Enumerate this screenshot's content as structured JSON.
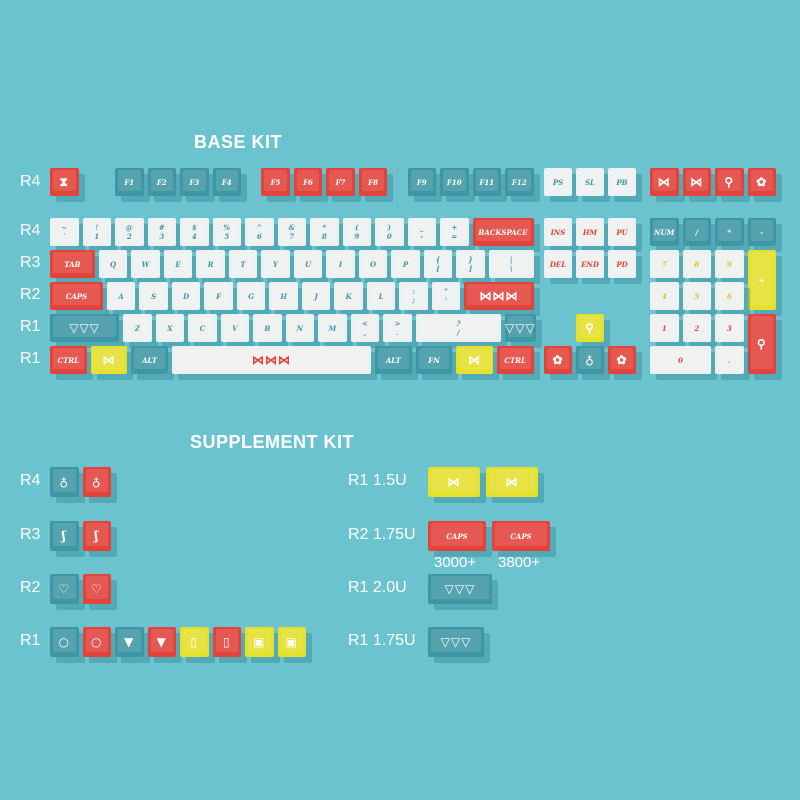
{
  "colors": {
    "background": "#6cc3d0",
    "r": "#e2433b",
    "t": "#3f97a5",
    "w": "#eef1f1",
    "y": "#e4e02c",
    "text_teal": "#3f97a5",
    "text_red": "#e2433b",
    "text_yellow": "#d9c51e",
    "text_white": "#ffffff"
  },
  "icon_glyphs": {
    "hourglass": "⧗",
    "candy": "⋈",
    "candies": "⋈⋈⋈",
    "candies-color": "⋈⋈⋈",
    "lollipop": "⚲",
    "cookie": "✿",
    "bunting": "▽▽▽",
    "donut": "◎",
    "cup": "♁",
    "heart-magnifier": "♡",
    "candy-cane": "ʃ",
    "balloon": "○",
    "ice-cream": "▼",
    "bottle": "▯",
    "gift": "▣"
  },
  "base_kit": {
    "title": "BASE KIT",
    "row_labels": [
      "R4",
      "R4",
      "R3",
      "R2",
      "R1",
      "R1"
    ],
    "fn_row": [
      {
        "icon": "hourglass",
        "c": "r"
      },
      {
        "label": "F1",
        "c": "t"
      },
      {
        "label": "F2",
        "c": "t"
      },
      {
        "label": "F3",
        "c": "t"
      },
      {
        "label": "F4",
        "c": "t"
      },
      {
        "label": "F5",
        "c": "r"
      },
      {
        "label": "F6",
        "c": "r"
      },
      {
        "label": "F7",
        "c": "r"
      },
      {
        "label": "F8",
        "c": "r"
      },
      {
        "label": "F9",
        "c": "t"
      },
      {
        "label": "F10",
        "c": "t"
      },
      {
        "label": "F11",
        "c": "t"
      },
      {
        "label": "F12",
        "c": "t"
      }
    ],
    "number_row": [
      {
        "label": "~\n`",
        "c": "w"
      },
      {
        "label": "!\n1",
        "c": "w"
      },
      {
        "label": "@\n2",
        "c": "w"
      },
      {
        "label": "#\n3",
        "c": "w"
      },
      {
        "label": "$\n4",
        "c": "w"
      },
      {
        "label": "%\n5",
        "c": "w"
      },
      {
        "label": "^\n6",
        "c": "w"
      },
      {
        "label": "&\n7",
        "c": "w"
      },
      {
        "label": "*\n8",
        "c": "w"
      },
      {
        "label": "(\n9",
        "c": "w"
      },
      {
        "label": ")\n0",
        "c": "w"
      },
      {
        "label": "_\n-",
        "c": "w"
      },
      {
        "label": "+\n=",
        "c": "w"
      },
      {
        "label": "BACKSPACE",
        "c": "r"
      }
    ],
    "tab_row": [
      {
        "label": "TAB",
        "c": "r"
      },
      {
        "label": "Q",
        "c": "w"
      },
      {
        "label": "W",
        "c": "w"
      },
      {
        "label": "E",
        "c": "w"
      },
      {
        "label": "R",
        "c": "w"
      },
      {
        "label": "T",
        "c": "w"
      },
      {
        "label": "Y",
        "c": "w"
      },
      {
        "label": "U",
        "c": "w"
      },
      {
        "label": "I",
        "c": "w"
      },
      {
        "label": "O",
        "c": "w"
      },
      {
        "label": "P",
        "c": "w"
      },
      {
        "label": "{\n[",
        "c": "w"
      },
      {
        "label": "}\n]",
        "c": "w"
      },
      {
        "label": "|\n\\",
        "c": "w"
      }
    ],
    "caps_row": [
      {
        "label": "CAPS",
        "c": "r"
      },
      {
        "label": "A",
        "c": "w"
      },
      {
        "label": "S",
        "c": "w"
      },
      {
        "label": "D",
        "c": "w"
      },
      {
        "label": "F",
        "c": "w"
      },
      {
        "label": "G",
        "c": "w"
      },
      {
        "label": "H",
        "c": "w"
      },
      {
        "label": "J",
        "c": "w"
      },
      {
        "label": "K",
        "c": "w"
      },
      {
        "label": "L",
        "c": "w"
      },
      {
        "label": ":\n;",
        "c": "w"
      },
      {
        "label": "\"\n'",
        "c": "w"
      },
      {
        "icon": "candies",
        "c": "r"
      }
    ],
    "shift_row": [
      {
        "icon": "bunting",
        "c": "t"
      },
      {
        "label": "Z",
        "c": "w"
      },
      {
        "label": "X",
        "c": "w"
      },
      {
        "label": "C",
        "c": "w"
      },
      {
        "label": "V",
        "c": "w"
      },
      {
        "label": "B",
        "c": "w"
      },
      {
        "label": "N",
        "c": "w"
      },
      {
        "label": "M",
        "c": "w"
      },
      {
        "label": "<\n,",
        "c": "w"
      },
      {
        "label": ">\n.",
        "c": "w"
      },
      {
        "label": "?\n/",
        "c": "w"
      },
      {
        "icon": "bunting",
        "c": "t"
      }
    ],
    "bottom_row": [
      {
        "label": "CTRL",
        "c": "r"
      },
      {
        "icon": "candy",
        "c": "y"
      },
      {
        "label": "ALT",
        "c": "t"
      },
      {
        "icon": "candies-color",
        "c": "w",
        "tc": "text_red"
      },
      {
        "label": "ALT",
        "c": "t"
      },
      {
        "label": "FN",
        "c": "t"
      },
      {
        "icon": "candy",
        "c": "y"
      },
      {
        "label": "CTRL",
        "c": "r"
      }
    ],
    "nav_top": [
      {
        "label": "PS",
        "c": "w"
      },
      {
        "label": "SL",
        "c": "w"
      },
      {
        "label": "PB",
        "c": "w"
      }
    ],
    "nav_row1": [
      {
        "label": "INS",
        "c": "w",
        "tc": "text_red"
      },
      {
        "label": "HM",
        "c": "w",
        "tc": "text_red"
      },
      {
        "label": "PU",
        "c": "w",
        "tc": "text_red"
      }
    ],
    "nav_row2": [
      {
        "label": "DEL",
        "c": "w",
        "tc": "text_red"
      },
      {
        "label": "END",
        "c": "w",
        "tc": "text_red"
      },
      {
        "label": "PD",
        "c": "w",
        "tc": "text_red"
      }
    ],
    "novelty_top": [
      {
        "icon": "candy",
        "c": "r"
      },
      {
        "icon": "candy",
        "c": "r"
      },
      {
        "icon": "lollipop",
        "c": "r"
      },
      {
        "icon": "cookie",
        "c": "r"
      }
    ],
    "arrows": [
      {
        "icon": "lollipop",
        "c": "y"
      },
      {
        "icon": "cookie",
        "c": "r"
      },
      {
        "icon": "cup",
        "c": "t"
      },
      {
        "icon": "cookie",
        "c": "r"
      }
    ],
    "numpad": [
      {
        "label": "NUM",
        "c": "t"
      },
      {
        "label": "/",
        "c": "t"
      },
      {
        "label": "*",
        "c": "t"
      },
      {
        "label": "-",
        "c": "t"
      },
      {
        "label": "7",
        "c": "w",
        "tc": "text_yellow"
      },
      {
        "label": "8",
        "c": "w",
        "tc": "text_yellow"
      },
      {
        "label": "9",
        "c": "w",
        "tc": "text_yellow"
      },
      {
        "label": "+",
        "c": "y",
        "tc": "text_white"
      },
      {
        "label": "4",
        "c": "w",
        "tc": "text_yellow"
      },
      {
        "label": "5",
        "c": "w",
        "tc": "text_yellow"
      },
      {
        "label": "6",
        "c": "w",
        "tc": "text_yellow"
      },
      {
        "label": "1",
        "c": "w",
        "tc": "text_red"
      },
      {
        "label": "2",
        "c": "w",
        "tc": "text_red"
      },
      {
        "label": "3",
        "c": "w",
        "tc": "text_red"
      },
      {
        "icon": "lollipop",
        "c": "r"
      },
      {
        "label": "0",
        "c": "w",
        "tc": "text_red"
      },
      {
        "label": ".",
        "c": "w",
        "tc": "text_red"
      }
    ]
  },
  "supplement_kit": {
    "title": "SUPPLEMENT KIT",
    "left": [
      {
        "row": "R4",
        "keys": [
          {
            "icon": "cup",
            "c": "t"
          },
          {
            "icon": "cup",
            "c": "r"
          }
        ]
      },
      {
        "row": "R3",
        "keys": [
          {
            "icon": "candy-cane",
            "c": "t"
          },
          {
            "icon": "candy-cane",
            "c": "r"
          }
        ]
      },
      {
        "row": "R2",
        "keys": [
          {
            "icon": "heart-magnifier",
            "c": "t"
          },
          {
            "icon": "heart-magnifier",
            "c": "r"
          }
        ]
      },
      {
        "row": "R1",
        "keys": [
          {
            "icon": "balloon",
            "c": "t"
          },
          {
            "icon": "balloon",
            "c": "r"
          },
          {
            "icon": "ice-cream",
            "c": "t"
          },
          {
            "icon": "ice-cream",
            "c": "r"
          },
          {
            "icon": "bottle",
            "c": "y"
          },
          {
            "icon": "bottle",
            "c": "r"
          },
          {
            "icon": "gift",
            "c": "y"
          },
          {
            "icon": "gift",
            "c": "y"
          }
        ]
      }
    ],
    "right": [
      {
        "row": "R1 1.5U",
        "keys": [
          {
            "icon": "candy",
            "c": "y"
          },
          {
            "icon": "candy",
            "c": "y"
          }
        ]
      },
      {
        "row": "R2 1.75U",
        "keys": [
          {
            "label": "CAPS",
            "c": "r"
          },
          {
            "label": "CAPS",
            "c": "r"
          }
        ],
        "notes": [
          "3000+",
          "3800+"
        ]
      },
      {
        "row": "R1 2.0U",
        "keys": [
          {
            "icon": "bunting",
            "c": "t"
          }
        ]
      },
      {
        "row": "R1 1.75U",
        "keys": [
          {
            "icon": "bunting",
            "c": "t"
          }
        ]
      }
    ]
  }
}
